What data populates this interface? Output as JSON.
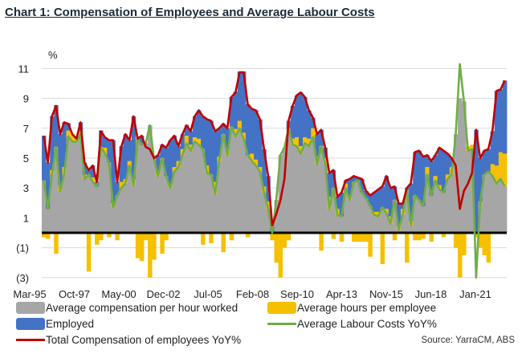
{
  "chart_data": {
    "type": "bar",
    "title": "Chart 1: Compensation of Employees and Average Labour Costs",
    "ylabel": "%",
    "ylim": [
      -3,
      11
    ],
    "y_ticks": [
      11,
      9,
      7,
      5,
      3,
      1,
      -1,
      -3
    ],
    "y_tick_labels": [
      "11",
      "9",
      "7",
      "5",
      "3",
      "1",
      "(1)",
      "(3)"
    ],
    "x_tick_labels": [
      "Mar-95",
      "Oct-97",
      "May-00",
      "Dec-02",
      "Jul-05",
      "Feb-08",
      "Sep-10",
      "Apr-13",
      "Nov-15",
      "Jun-18",
      "Jan-21"
    ],
    "frequency": "quarterly",
    "grid": true,
    "legend_position": "bottom",
    "source": "Source: YarraCM, ABS",
    "series": [
      {
        "name": "Average compensation per hour worked",
        "kind": "bar",
        "color": "#a6a6a6",
        "values": [
          3.5,
          1.6,
          3.9,
          5.75,
          2.8,
          3.9,
          6.45,
          6.1,
          6.1,
          6.6,
          3.6,
          3.9,
          3.4,
          3.1,
          5.75,
          5.3,
          4.7,
          1.7,
          2.5,
          3.0,
          3.3,
          4.5,
          3.2,
          6.3,
          5.9,
          6.0,
          7.2,
          5.0,
          3.8,
          5.0,
          3.8,
          3.0,
          4.1,
          4.4,
          5.2,
          6.0,
          5.5,
          6.1,
          5.9,
          5.6,
          4.0,
          3.9,
          2.6,
          4.8,
          6.6,
          5.2,
          7.1,
          6.45,
          7.0,
          6.3,
          5.2,
          4.8,
          4.5,
          4.1,
          2.7,
          1.6,
          0,
          2.2,
          5.2,
          5.7,
          7.0,
          5.9,
          5.8,
          5.3,
          6.0,
          5.8,
          6.4,
          4.6,
          5.8,
          4.6,
          1.6,
          3.0,
          1.2,
          1.1,
          3.0,
          2.2,
          3.4,
          3.5,
          2.7,
          2.3,
          1.8,
          1.2,
          1.1,
          1.7,
          1.3,
          0.6,
          2.2,
          0.2,
          1.2,
          2.9,
          0.5,
          2.5,
          2.2,
          1.8,
          3.9,
          2.5,
          3.5,
          2.9,
          2.7,
          3.6,
          3.9,
          6.6,
          9.0,
          8.8,
          5.5,
          5.6,
          0,
          2.1,
          3.9,
          4.1,
          3.8,
          3.3,
          3.6,
          3.1
        ]
      },
      {
        "name": "Average hours per employee",
        "kind": "bar",
        "color": "#f5c000",
        "values": [
          -0.3,
          -0.4,
          0.3,
          -1.4,
          0.4,
          0.5,
          0.4,
          0.5,
          0.3,
          0.2,
          0.3,
          -2.6,
          0.3,
          -0.8,
          -0.5,
          0.4,
          -0.3,
          0.3,
          -0.5,
          0.4,
          0.3,
          0.3,
          0.4,
          -1.7,
          -1.9,
          -0.5,
          -3.0,
          -1.8,
          0.3,
          -1.4,
          -0.5,
          0.3,
          0.3,
          0.4,
          0.4,
          0.5,
          0.4,
          0.3,
          0.4,
          -0.8,
          0.5,
          -0.7,
          0.8,
          0.3,
          -1.3,
          0.4,
          -0.5,
          0.5,
          0.5,
          0.4,
          -0.3,
          0.5,
          0.4,
          0.3,
          0.4,
          0.5,
          -0.5,
          -2.0,
          -3.0,
          -1.0,
          -0.5,
          0.4,
          0.6,
          0.5,
          0.4,
          0.5,
          0.6,
          0.5,
          -1.2,
          0.4,
          0.8,
          -0.4,
          0.4,
          -0.6,
          0.3,
          0.3,
          -0.6,
          -0.6,
          -0.6,
          -0.6,
          -1.6,
          0.2,
          0.3,
          -2.1,
          0.3,
          0.5,
          -0.5,
          0.3,
          0.4,
          -2.0,
          0.3,
          -0.5,
          -0.5,
          -0.4,
          0.5,
          -0.6,
          0.3,
          0.3,
          -0.3,
          0.3,
          0.5,
          -1.0,
          -3.0,
          -1.5,
          0.3,
          0.3,
          -0.3,
          -1.0,
          -1.5,
          -2.0,
          0.8,
          1.2,
          1.8,
          2.2
        ]
      },
      {
        "name": "Employed",
        "kind": "bar",
        "color": "#4472c4",
        "values": [
          3.0,
          3.1,
          3.6,
          2.8,
          3.4,
          3.0,
          0.5,
          0,
          0,
          0.6,
          0.8,
          0.3,
          0.8,
          0.3,
          1.1,
          0.7,
          1.5,
          4.2,
          0.9,
          2.4,
          3.0,
          1.4,
          4.2,
          0,
          0.6,
          0,
          0,
          0,
          1.1,
          0.9,
          1.9,
          2.9,
          2.1,
          1.0,
          1.0,
          0.7,
          0.9,
          1.4,
          1.9,
          2.2,
          3.1,
          3.6,
          3.4,
          1.9,
          0.7,
          1.4,
          2.0,
          2.5,
          3.3,
          4.1,
          3.4,
          3.0,
          3.3,
          3.2,
          2.5,
          1.7,
          0.5,
          0,
          0,
          0,
          0.5,
          2.2,
          2.8,
          3.6,
          2.7,
          1.9,
          0.7,
          1.5,
          1.1,
          0.7,
          1.6,
          1.2,
          0.8,
          1.6,
          0.2,
          1.1,
          0.4,
          0.2,
          0.9,
          0.5,
          0.7,
          1.3,
          1.5,
          1.4,
          2.2,
          1.9,
          0.9,
          1.5,
          0.4,
          0.1,
          2.5,
          2.9,
          3.3,
          3.3,
          0.8,
          2.3,
          1.4,
          2.5,
          2.8,
          1.4,
          0.6,
          0,
          0,
          0,
          0,
          0,
          6.9,
          2.9,
          1.6,
          1.5,
          2.2,
          5.0,
          4.2,
          4.9
        ]
      },
      {
        "name": "Average Labour Costs YoY%",
        "kind": "line",
        "color": "#70ad47",
        "values": [
          3.5,
          1.6,
          3.9,
          5.75,
          2.8,
          3.9,
          6.45,
          6.1,
          6.1,
          6.6,
          3.6,
          3.9,
          3.4,
          3.1,
          5.75,
          5.3,
          4.7,
          1.7,
          2.5,
          3.0,
          3.3,
          4.5,
          3.2,
          6.3,
          5.9,
          6.0,
          7.2,
          5.0,
          3.8,
          5.0,
          3.8,
          3.0,
          4.1,
          4.4,
          5.2,
          6.0,
          5.5,
          6.1,
          5.9,
          5.6,
          4.0,
          3.9,
          2.6,
          4.8,
          6.6,
          5.2,
          7.1,
          6.45,
          7.0,
          6.3,
          5.2,
          4.8,
          4.5,
          4.1,
          2.7,
          1.6,
          0,
          2.2,
          5.2,
          5.7,
          7.0,
          5.9,
          5.8,
          5.3,
          6.0,
          5.8,
          6.4,
          4.6,
          5.8,
          4.6,
          1.6,
          3.0,
          1.2,
          1.1,
          3.0,
          2.2,
          3.4,
          3.5,
          2.7,
          2.3,
          1.8,
          1.2,
          1.1,
          1.7,
          1.3,
          0.6,
          2.2,
          0.2,
          1.2,
          2.9,
          0.5,
          2.5,
          2.2,
          1.8,
          3.9,
          2.5,
          3.5,
          2.9,
          2.7,
          3.6,
          3.9,
          6.6,
          11.3,
          8.8,
          5.5,
          5.6,
          -3.0,
          2.1,
          3.9,
          4.1,
          3.8,
          3.3,
          3.6,
          3.1
        ]
      },
      {
        "name": "Total Compensation of employees YoY%",
        "kind": "line",
        "color": "#c00000",
        "values": [
          6.5,
          4.7,
          7.8,
          8.5,
          6.6,
          7.4,
          7.3,
          6.6,
          6.3,
          7.4,
          4.7,
          4.2,
          4.5,
          3.4,
          6.8,
          6.4,
          6.2,
          6.2,
          3.4,
          5.75,
          6.6,
          6.2,
          7.8,
          6.3,
          6.5,
          5.75,
          5.6,
          5.0,
          5.2,
          5.9,
          5.7,
          6.2,
          6.5,
          5.8,
          6.6,
          7.2,
          6.8,
          7.8,
          8.2,
          7.8,
          7.6,
          7.5,
          6.8,
          7.0,
          7.3,
          7.0,
          9.1,
          9.4,
          10.75,
          10.75,
          8.6,
          8.3,
          8.2,
          7.6,
          5.6,
          3.8,
          0.5,
          1.25,
          2.15,
          3.6,
          7.5,
          8.5,
          9.2,
          9.4,
          9.1,
          8.2,
          7.7,
          6.6,
          6.9,
          5.7,
          4.0,
          4.2,
          2.4,
          2.7,
          3.5,
          3.6,
          3.8,
          3.7,
          3.6,
          2.8,
          2.5,
          2.7,
          2.9,
          3.1,
          3.8,
          3.0,
          3.1,
          1.95,
          1.95,
          3.0,
          3.3,
          5.4,
          5.5,
          5.1,
          5.2,
          4.8,
          5.2,
          5.7,
          5.5,
          5.3,
          5.0,
          4.5,
          1.6,
          2.8,
          3.3,
          4.0,
          6.9,
          5.0,
          5.5,
          5.6,
          6.8,
          9.5,
          9.6,
          10.2
        ]
      }
    ]
  }
}
